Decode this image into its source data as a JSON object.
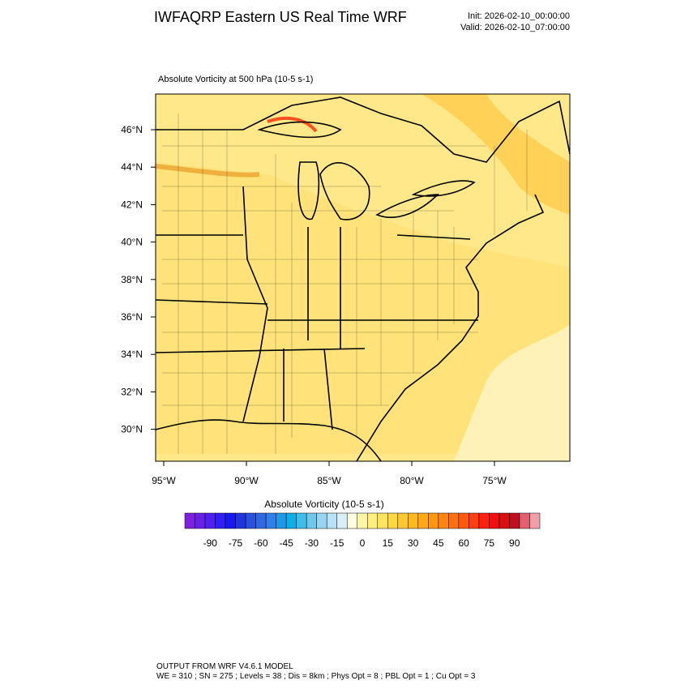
{
  "header": {
    "title": "IWFAQRP Eastern US Real Time WRF",
    "init": "Init: 2026-02-10_00:00:00",
    "valid": "Valid: 2026-02-10_07:00:00"
  },
  "map": {
    "field_title": "Absolute Vorticity at 500 hPa   (10-5 s-1)",
    "lat_labels": [
      "46°N",
      "44°N",
      "42°N",
      "40°N",
      "38°N",
      "36°N",
      "34°N",
      "32°N",
      "30°N"
    ],
    "lon_labels": [
      "95°W",
      "90°W",
      "85°W",
      "80°W",
      "75°W"
    ]
  },
  "colorbar": {
    "title": "Absolute Vorticity  (10-5 s-1)",
    "range": [
      -105,
      105
    ],
    "ticks": [
      -90,
      -75,
      -60,
      -45,
      -30,
      -15,
      0,
      15,
      30,
      45,
      60,
      75,
      90
    ],
    "colors": [
      "#7f1fe0",
      "#6a1fe8",
      "#5020f0",
      "#3020f5",
      "#1818f0",
      "#2035e0",
      "#2a50e0",
      "#3068e0",
      "#2f80e8",
      "#1f98e8",
      "#10aee8",
      "#40bde8",
      "#70c8ea",
      "#98d5f0",
      "#b8e2f5",
      "#d8eef8",
      "#fffde0",
      "#fff6a8",
      "#ffee80",
      "#ffe460",
      "#ffd840",
      "#ffc830",
      "#ffb820",
      "#ffa818",
      "#ff9810",
      "#ff8410",
      "#ff7010",
      "#ff5a10",
      "#ff4010",
      "#ff2010",
      "#f01010",
      "#d81010",
      "#c01020",
      "#e06070",
      "#f0a0a8"
    ]
  },
  "footer": {
    "line1": "OUTPUT FROM WRF V4.6.1 MODEL",
    "line2": "WE = 310 ; SN = 275 ; Levels = 38 ; Dis = 8km ; Phys Opt = 8 ; PBL Opt = 1 ; Cu Opt = 3"
  }
}
